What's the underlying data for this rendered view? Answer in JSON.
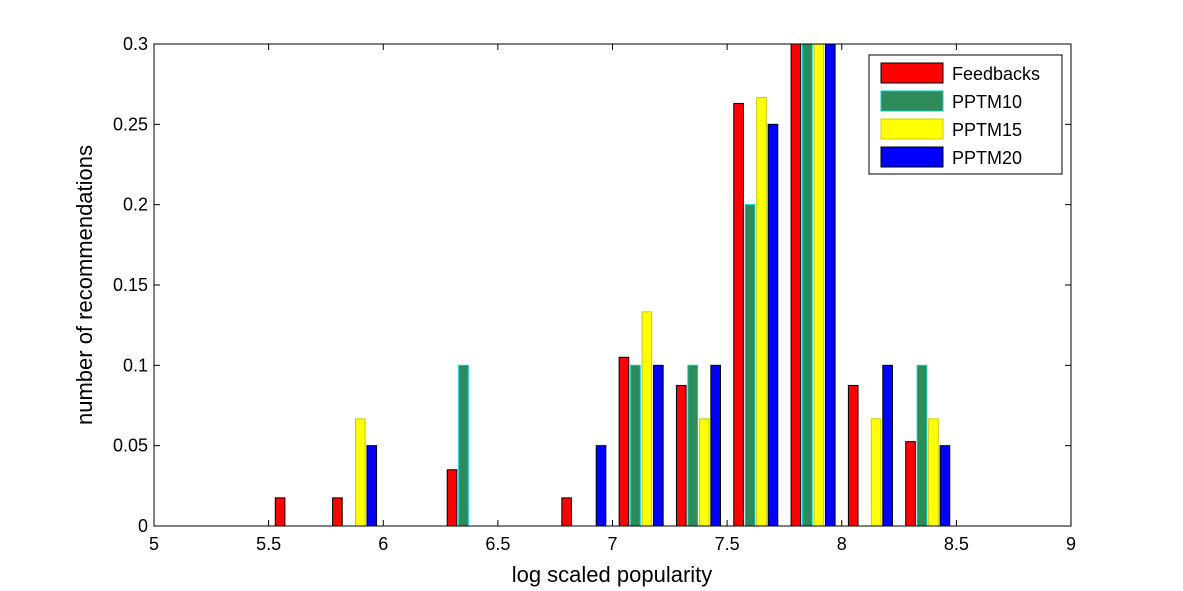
{
  "chart_data": {
    "type": "bar",
    "xlabel": "log scaled popularity",
    "ylabel": "number of recommendations",
    "xlim": [
      5,
      9
    ],
    "ylim": [
      0,
      0.3
    ],
    "x_ticks": [
      "5",
      "5.5",
      "6",
      "6.5",
      "7",
      "7.5",
      "8",
      "8.5",
      "9"
    ],
    "y_ticks": [
      "0",
      "0.05",
      "0.1",
      "0.15",
      "0.2",
      "0.25",
      "0.3"
    ],
    "grid": false,
    "legend_position": "top-right",
    "bin_centers": [
      5.125,
      5.375,
      5.625,
      5.875,
      6.125,
      6.375,
      6.625,
      6.875,
      7.125,
      7.375,
      7.625,
      7.875,
      8.125,
      8.375,
      8.625,
      8.875
    ],
    "series": [
      {
        "name": "Feedbacks",
        "color": "#ff0000",
        "edge": "#000000",
        "values": [
          0,
          0,
          0.0175,
          0.0175,
          0,
          0.035,
          0,
          0.0175,
          0.105,
          0.0875,
          0.263,
          0.3,
          0.0875,
          0.0525,
          0,
          0
        ]
      },
      {
        "name": "PPTM10",
        "color": "#2e8b57",
        "edge": "#00cccc",
        "values": [
          0,
          0,
          0,
          0,
          0,
          0.1,
          0,
          0,
          0.1,
          0.1,
          0.2,
          0.3,
          0,
          0.1,
          0,
          0
        ]
      },
      {
        "name": "PPTM15",
        "color": "#ffff00",
        "edge": "#cccc00",
        "values": [
          0,
          0,
          0,
          0.0667,
          0,
          0,
          0,
          0,
          0.1333,
          0.0667,
          0.2667,
          0.3,
          0.0667,
          0.0667,
          0,
          0
        ]
      },
      {
        "name": "PPTM20",
        "color": "#0000ff",
        "edge": "#000000",
        "values": [
          0,
          0,
          0,
          0.05,
          0,
          0,
          0,
          0.05,
          0.1,
          0.1,
          0.25,
          0.3,
          0.1,
          0.05,
          0,
          0
        ]
      }
    ]
  }
}
